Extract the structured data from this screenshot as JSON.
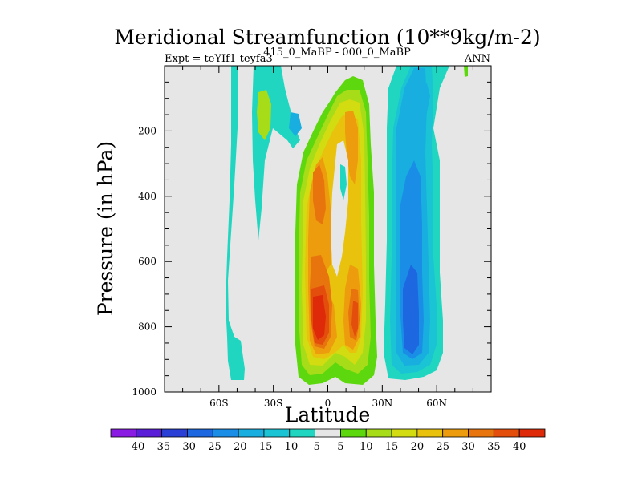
{
  "chart_data": {
    "type": "contour",
    "title": "Meridional Streamfunction (10**9kg/m-2)",
    "subtitle_left": "Expt = teYIf1-teyfa3",
    "subtitle_center": "415_0_MaBP - 000_0_MaBP",
    "subtitle_right": "ANN",
    "xlabel": "Latitude",
    "ylabel": "Pressure (in hPa)",
    "xlim": [
      -90,
      90
    ],
    "ylim": [
      1000,
      0
    ],
    "x_ticks": [
      {
        "value": -60,
        "label": "60S"
      },
      {
        "value": -30,
        "label": "30S"
      },
      {
        "value": 0,
        "label": "0"
      },
      {
        "value": 30,
        "label": "30N"
      },
      {
        "value": 60,
        "label": "60N"
      }
    ],
    "y_ticks": [
      {
        "value": 200,
        "label": "200"
      },
      {
        "value": 400,
        "label": "400"
      },
      {
        "value": 600,
        "label": "600"
      },
      {
        "value": 800,
        "label": "800"
      },
      {
        "value": 1000,
        "label": "1000"
      }
    ],
    "colorbar": {
      "levels": [
        "-40",
        "-35",
        "-30",
        "-25",
        "-20",
        "-15",
        "-10",
        "-5",
        "5",
        "10",
        "15",
        "20",
        "25",
        "30",
        "35",
        "40"
      ],
      "colors": [
        "#8a1be2",
        "#5a1ed8",
        "#2a3fd6",
        "#1d68e0",
        "#1a8ee6",
        "#18aee0",
        "#1ac4d4",
        "#20d6c0",
        "#e6e6e6",
        "#5ed80e",
        "#a6dc18",
        "#d2dc10",
        "#e8c20c",
        "#ec9c0c",
        "#e8740e",
        "#e44e0c",
        "#de2a08"
      ]
    },
    "features": [
      {
        "name": "Strong positive cell",
        "lat": -5,
        "pressure": 770,
        "value": 40
      },
      {
        "name": "Secondary positive cell",
        "lat": 16,
        "pressure": 780,
        "value": 35
      },
      {
        "name": "Upper positive cell",
        "lat": -8,
        "pressure": 280,
        "value": 30
      },
      {
        "name": "Negative cell",
        "lat": 40,
        "pressure": 820,
        "value": -30
      }
    ]
  }
}
